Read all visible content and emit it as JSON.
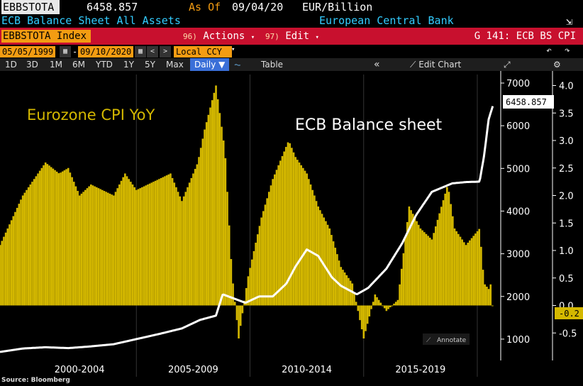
{
  "header": {
    "ticker": "EBBSTOTA",
    "price": "6458.857",
    "as_of_label": "As Of",
    "as_of_date": "09/04/20",
    "unit": "EUR/Billion",
    "description": "ECB Balance Sheet All Assets",
    "issuer": "European Central Bank",
    "export_icon": "export-icon"
  },
  "menu": {
    "index_box": "EBBSTOTA Index",
    "actions_num": "96)",
    "actions_label": "Actions",
    "edit_num": "97)",
    "edit_label": "Edit",
    "chart_title": "G 141: ECB BS CPI"
  },
  "range": {
    "start": "05/05/1999",
    "end": "09/10/2020",
    "dash": "-",
    "currency": "Local CCY"
  },
  "periods": [
    "1D",
    "3D",
    "1M",
    "6M",
    "YTD",
    "1Y",
    "5Y",
    "Max"
  ],
  "toolbar": {
    "frequency": "Daily ▼",
    "table": "Table",
    "collapse": "«",
    "edit_chart": "Edit Chart",
    "undo_icon": "undo-icon",
    "redo_icon": "redo-icon",
    "settings_icon": "gear-icon"
  },
  "chart_data": {
    "type": "bar+line",
    "annotations": [
      "Eurozone CPI YoY",
      "ECB Balance sheet"
    ],
    "annotate_button": "Annotate",
    "x_labels": [
      "2000-2004",
      "2005-2009",
      "2010-2014",
      "2015-2019"
    ],
    "left_axis": {
      "ticks": [
        "7000",
        "6000",
        "5000",
        "4000",
        "3000",
        "2000",
        "1000"
      ],
      "range": [
        500,
        7200
      ]
    },
    "right_axis": {
      "ticks": [
        "4.0",
        "3.5",
        "3.0",
        "2.5",
        "2.0",
        "1.5",
        "1.0",
        "0.5",
        "0.0",
        "-0.5"
      ],
      "range": [
        -1.0,
        4.2
      ]
    },
    "last_value_balance": "6458.857",
    "last_value_cpi": "-0.2",
    "colors": {
      "cpi": "#d4b800",
      "balance": "#ffffff",
      "value_box_cpi": "#d4b800"
    },
    "cpi_yoy": [
      {
        "year": 1999.0,
        "v": 1.1
      },
      {
        "year": 2000.0,
        "v": 2.0
      },
      {
        "year": 2001.0,
        "v": 2.6
      },
      {
        "year": 2001.6,
        "v": 2.4
      },
      {
        "year": 2002.0,
        "v": 2.5
      },
      {
        "year": 2002.5,
        "v": 2.0
      },
      {
        "year": 2003.0,
        "v": 2.2
      },
      {
        "year": 2004.0,
        "v": 2.0
      },
      {
        "year": 2004.5,
        "v": 2.4
      },
      {
        "year": 2005.0,
        "v": 2.1
      },
      {
        "year": 2006.0,
        "v": 2.3
      },
      {
        "year": 2006.5,
        "v": 2.4
      },
      {
        "year": 2007.0,
        "v": 1.9
      },
      {
        "year": 2007.7,
        "v": 2.6
      },
      {
        "year": 2008.0,
        "v": 3.2
      },
      {
        "year": 2008.5,
        "v": 4.0
      },
      {
        "year": 2008.9,
        "v": 2.8
      },
      {
        "year": 2009.2,
        "v": 0.6
      },
      {
        "year": 2009.5,
        "v": -0.6
      },
      {
        "year": 2009.9,
        "v": 0.5
      },
      {
        "year": 2010.5,
        "v": 1.6
      },
      {
        "year": 2011.0,
        "v": 2.3
      },
      {
        "year": 2011.7,
        "v": 3.0
      },
      {
        "year": 2012.0,
        "v": 2.7
      },
      {
        "year": 2012.5,
        "v": 2.4
      },
      {
        "year": 2013.0,
        "v": 1.8
      },
      {
        "year": 2013.5,
        "v": 1.4
      },
      {
        "year": 2014.0,
        "v": 0.7
      },
      {
        "year": 2014.5,
        "v": 0.4
      },
      {
        "year": 2015.0,
        "v": -0.6
      },
      {
        "year": 2015.5,
        "v": 0.2
      },
      {
        "year": 2016.0,
        "v": -0.1
      },
      {
        "year": 2016.5,
        "v": 0.1
      },
      {
        "year": 2017.0,
        "v": 1.8
      },
      {
        "year": 2017.5,
        "v": 1.4
      },
      {
        "year": 2018.0,
        "v": 1.2
      },
      {
        "year": 2018.7,
        "v": 2.2
      },
      {
        "year": 2019.0,
        "v": 1.4
      },
      {
        "year": 2019.5,
        "v": 1.1
      },
      {
        "year": 2019.9,
        "v": 1.3
      },
      {
        "year": 2020.1,
        "v": 1.4
      },
      {
        "year": 2020.3,
        "v": 0.4
      },
      {
        "year": 2020.5,
        "v": 0.3
      },
      {
        "year": 2020.6,
        "v": 0.4
      },
      {
        "year": 2020.7,
        "v": -0.2
      }
    ],
    "balance_sheet": [
      {
        "year": 1999.0,
        "v": 700
      },
      {
        "year": 2000.0,
        "v": 780
      },
      {
        "year": 2001.0,
        "v": 810
      },
      {
        "year": 2002.0,
        "v": 790
      },
      {
        "year": 2003.0,
        "v": 830
      },
      {
        "year": 2004.0,
        "v": 880
      },
      {
        "year": 2005.0,
        "v": 1000
      },
      {
        "year": 2006.0,
        "v": 1120
      },
      {
        "year": 2007.0,
        "v": 1250
      },
      {
        "year": 2007.8,
        "v": 1450
      },
      {
        "year": 2008.5,
        "v": 1550
      },
      {
        "year": 2008.8,
        "v": 2050
      },
      {
        "year": 2009.3,
        "v": 1950
      },
      {
        "year": 2009.8,
        "v": 1850
      },
      {
        "year": 2010.4,
        "v": 2000
      },
      {
        "year": 2011.0,
        "v": 2000
      },
      {
        "year": 2011.6,
        "v": 2300
      },
      {
        "year": 2012.0,
        "v": 2700
      },
      {
        "year": 2012.5,
        "v": 3100
      },
      {
        "year": 2013.0,
        "v": 2950
      },
      {
        "year": 2013.6,
        "v": 2450
      },
      {
        "year": 2014.0,
        "v": 2250
      },
      {
        "year": 2014.7,
        "v": 2050
      },
      {
        "year": 2015.2,
        "v": 2200
      },
      {
        "year": 2016.0,
        "v": 2650
      },
      {
        "year": 2016.7,
        "v": 3250
      },
      {
        "year": 2017.3,
        "v": 3900
      },
      {
        "year": 2018.0,
        "v": 4450
      },
      {
        "year": 2018.9,
        "v": 4650
      },
      {
        "year": 2019.5,
        "v": 4680
      },
      {
        "year": 2020.1,
        "v": 4690
      },
      {
        "year": 2020.3,
        "v": 5300
      },
      {
        "year": 2020.5,
        "v": 6150
      },
      {
        "year": 2020.68,
        "v": 6458.857
      }
    ]
  }
}
